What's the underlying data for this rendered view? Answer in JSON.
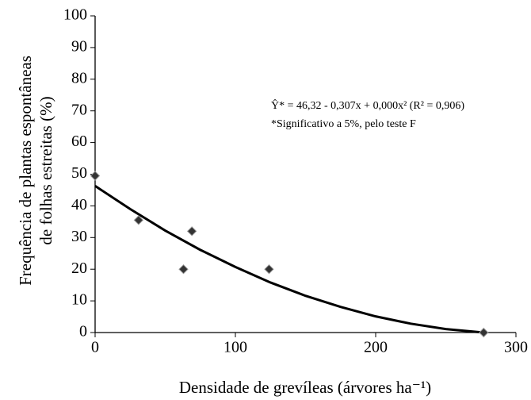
{
  "chart_data": {
    "type": "scatter",
    "x_label": "Densidade de grevíleas (árvores ha⁻¹)",
    "y_label": [
      "Frequência de plantas espontâneas",
      "de folhas estreitas (%)"
    ],
    "annotations": [
      "Ŷ* = 46,32 - 0,307x + 0,000x² (R² = 0,906)",
      "*Significativo a 5%, pelo teste F"
    ],
    "points": {
      "x": [
        0,
        31,
        63,
        69,
        124,
        277
      ],
      "y": [
        49.5,
        35.5,
        20,
        32,
        20,
        0
      ],
      "color": "#333333"
    },
    "fit": {
      "x": [
        0,
        25,
        50,
        75,
        100,
        125,
        150,
        175,
        200,
        225,
        250,
        277
      ],
      "y": [
        46.3,
        39.0,
        32.2,
        26.1,
        20.7,
        15.8,
        11.6,
        8.1,
        5.1,
        2.8,
        1.1,
        0
      ],
      "color": "#000000"
    },
    "xlim": [
      0,
      300
    ],
    "xticks": [
      0,
      100,
      200,
      300
    ],
    "ylim": [
      0,
      100
    ],
    "yticks": [
      0,
      10,
      20,
      30,
      40,
      50,
      60,
      70,
      80,
      90,
      100
    ],
    "grid": false
  }
}
